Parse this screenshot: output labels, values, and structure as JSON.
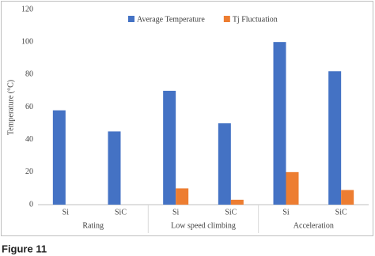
{
  "chart_data": {
    "type": "bar",
    "categories": [
      "Si",
      "SiC",
      "Si",
      "SiC",
      "Si",
      "SiC"
    ],
    "groups": [
      "Rating",
      "Low speed climbing",
      "Acceleration"
    ],
    "series": [
      {
        "name": "Average Temperature",
        "color": "#4472c4",
        "values": [
          58,
          45,
          70,
          50,
          100,
          82
        ]
      },
      {
        "name": "Tj Fluctuation",
        "color": "#ed7d31",
        "values": [
          0,
          0,
          10,
          3,
          20,
          9
        ]
      }
    ],
    "y_label": "Temperature (°C)",
    "ylim": [
      0,
      120
    ],
    "yticks": [
      0,
      20,
      40,
      60,
      80,
      100,
      120
    ],
    "grid": false
  },
  "caption": "Figure 11"
}
